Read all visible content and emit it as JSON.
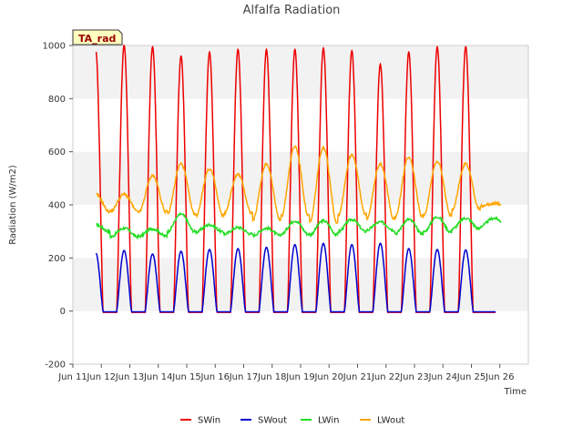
{
  "chart_data": {
    "type": "line",
    "title": "Alfalfa Radiation",
    "xlabel": "Time",
    "ylabel": "Radiation (W/m2)",
    "badge": "TA_rad",
    "xlim": [
      10.0,
      26.0
    ],
    "ylim": [
      -200,
      1000
    ],
    "grid": "horizontal bands",
    "legend_position": "bottom",
    "x_ticks": [
      {
        "value": 10,
        "label": "Jun 11"
      },
      {
        "value": 11,
        "label": "Jun 12"
      },
      {
        "value": 12,
        "label": "Jun 13"
      },
      {
        "value": 13,
        "label": "Jun 14"
      },
      {
        "value": 14,
        "label": "Jun 15"
      },
      {
        "value": 15,
        "label": "Jun 16"
      },
      {
        "value": 16,
        "label": "Jun 17"
      },
      {
        "value": 17,
        "label": "Jun 18"
      },
      {
        "value": 18,
        "label": "Jun 19"
      },
      {
        "value": 19,
        "label": "Jun 20"
      },
      {
        "value": 20,
        "label": "Jun 21"
      },
      {
        "value": 21,
        "label": "Jun 22"
      },
      {
        "value": 22,
        "label": "Jun 23"
      },
      {
        "value": 23,
        "label": "Jun 24"
      },
      {
        "value": 24,
        "label": "Jun 25"
      },
      {
        "value": 25,
        "label": "Jun 26"
      }
    ],
    "x_tick_labels_note": "tick labels rendered exactly as the original prints them",
    "x_tick_display": [
      "Jun 11",
      "Jun 12",
      "Jun 13",
      "Jun 14",
      "Jun 15",
      "Jun 16",
      "Jun 17",
      "Jun 18",
      "Jun 19",
      "Jun 20",
      "Jun 21",
      "Jun 22",
      "Jun 23",
      "Jun 24",
      "Jun 25",
      "Jun 26"
    ],
    "y_ticks": [
      -200,
      0,
      200,
      400,
      600,
      800,
      1000
    ],
    "daily_x": [
      10.8,
      11.8,
      12.8,
      13.8,
      14.8,
      15.8,
      16.8,
      17.8,
      18.8,
      19.8,
      20.8,
      21.8,
      22.8,
      23.8,
      24.8
    ],
    "series": [
      {
        "name": "SWin",
        "color": "#ee0000",
        "daily_peak": [
          985,
          1000,
          995,
          960,
          975,
          985,
          985,
          985,
          990,
          980,
          930,
          975,
          995,
          995,
          0
        ],
        "night_value": -5
      },
      {
        "name": "SWout",
        "color": "#0000cc",
        "daily_peak": [
          220,
          228,
          215,
          225,
          232,
          235,
          240,
          250,
          255,
          250,
          255,
          235,
          232,
          230,
          0
        ],
        "night_value": -3
      },
      {
        "name": "LWin",
        "color": "#22dd22",
        "daily_min": [
          300,
          280,
          282,
          300,
          298,
          290,
          285,
          290,
          288,
          300,
          305,
          292,
          298,
          310,
          320
        ],
        "daily_max": [
          325,
          312,
          310,
          365,
          325,
          315,
          312,
          340,
          340,
          345,
          335,
          345,
          355,
          350,
          350
        ]
      },
      {
        "name": "LWout",
        "color": "#ffa500",
        "daily_min": [
          375,
          375,
          375,
          368,
          360,
          370,
          345,
          360,
          335,
          365,
          350,
          355,
          360,
          385,
          395
        ],
        "daily_max": [
          440,
          440,
          510,
          555,
          535,
          515,
          555,
          620,
          615,
          590,
          555,
          580,
          565,
          555,
          405
        ]
      }
    ]
  }
}
